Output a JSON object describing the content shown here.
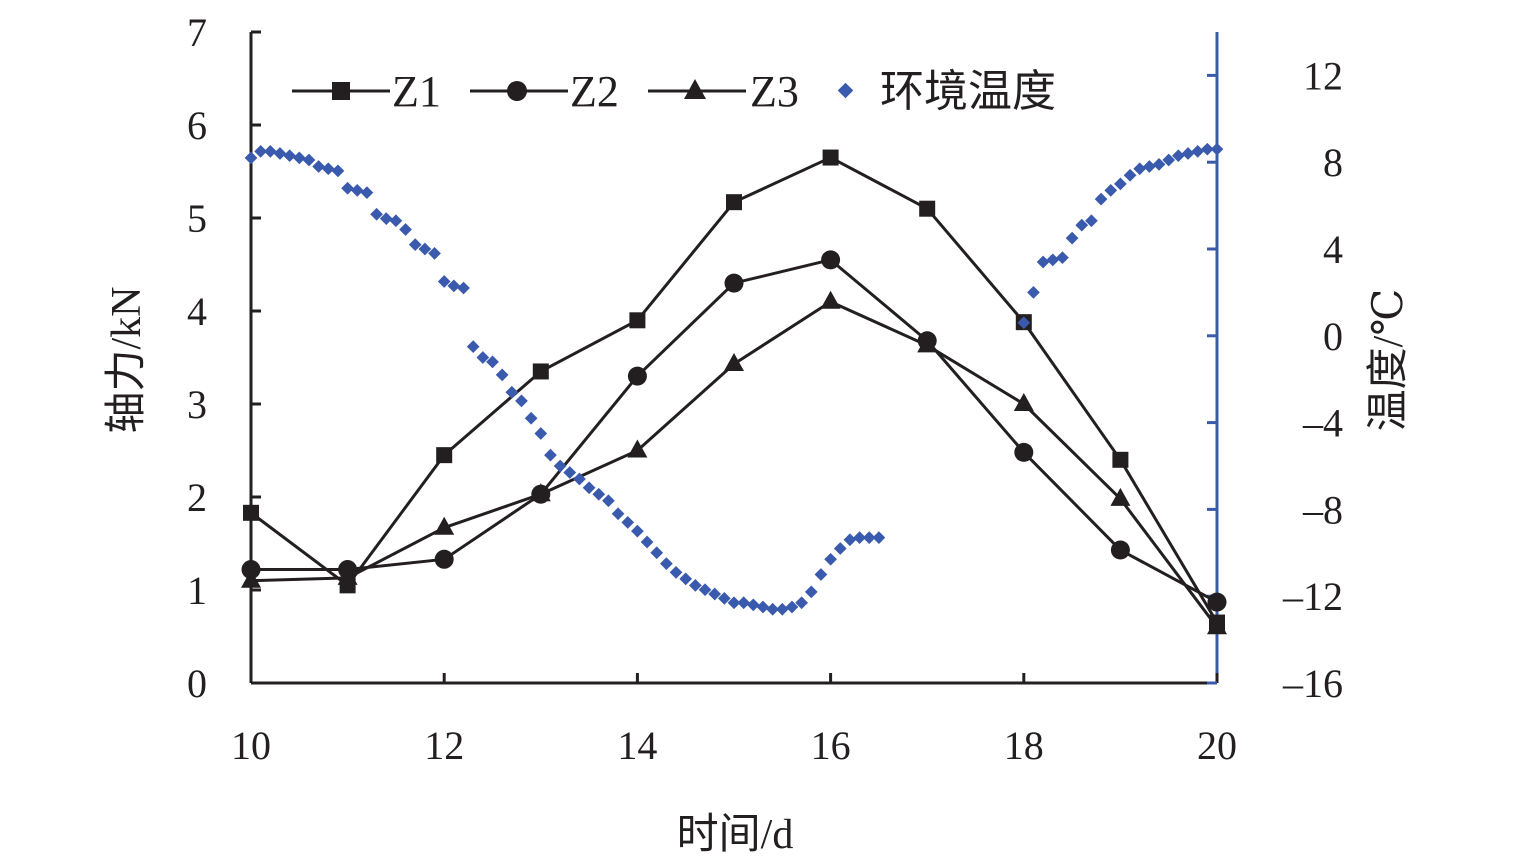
{
  "chart_data": {
    "type": "line",
    "xlabel": "时间/d",
    "ylabel": "轴力/kN",
    "y2label": "温度/℃",
    "xlim": [
      10,
      20
    ],
    "ylim": [
      0,
      7
    ],
    "y2lim": [
      -16,
      14
    ],
    "x_ticks": [
      10,
      12,
      14,
      16,
      18,
      20
    ],
    "y_ticks": [
      0,
      1,
      2,
      3,
      4,
      5,
      6,
      7
    ],
    "y2_ticks": [
      -16,
      -12,
      -8,
      -4,
      0,
      4,
      8,
      12
    ],
    "legend_position": "top",
    "series": [
      {
        "name": "Z1",
        "axis": "left",
        "marker": "square",
        "color": "#231f20",
        "x": [
          10,
          11,
          12,
          13,
          14,
          15,
          16,
          17,
          18,
          19,
          20
        ],
        "values": [
          1.83,
          1.05,
          2.45,
          3.35,
          3.9,
          5.17,
          5.65,
          5.1,
          3.88,
          2.4,
          0.65
        ]
      },
      {
        "name": "Z2",
        "axis": "left",
        "marker": "circle",
        "color": "#231f20",
        "x": [
          10,
          11,
          12,
          13,
          14,
          15,
          16,
          17,
          18,
          19,
          20
        ],
        "values": [
          1.22,
          1.22,
          1.33,
          2.03,
          3.3,
          4.3,
          4.55,
          3.68,
          2.48,
          1.43,
          0.87
        ]
      },
      {
        "name": "Z3",
        "axis": "left",
        "marker": "triangle",
        "color": "#231f20",
        "x": [
          10,
          11,
          12,
          13,
          14,
          15,
          16,
          17,
          18,
          19,
          20
        ],
        "values": [
          1.1,
          1.13,
          1.67,
          2.03,
          2.5,
          3.43,
          4.1,
          3.63,
          3.0,
          1.98,
          0.6
        ]
      },
      {
        "name": "环境温度",
        "axis": "right",
        "marker": "diamond",
        "color": "#3a5bad",
        "x": [
          10.0,
          10.1,
          10.2,
          10.3,
          10.4,
          10.5,
          10.6,
          10.7,
          10.8,
          10.9,
          11.0,
          11.1,
          11.2,
          11.3,
          11.4,
          11.5,
          11.6,
          11.7,
          11.8,
          11.9,
          12.0,
          12.1,
          12.2,
          12.3,
          12.4,
          12.5,
          12.6,
          12.7,
          12.8,
          12.9,
          13.0,
          13.1,
          13.2,
          13.3,
          13.4,
          13.5,
          13.6,
          13.7,
          13.8,
          13.9,
          14.0,
          14.1,
          14.2,
          14.3,
          14.4,
          14.5,
          14.6,
          14.7,
          14.8,
          14.9,
          15.0,
          15.1,
          15.2,
          15.3,
          15.4,
          15.5,
          15.6,
          15.7,
          15.8,
          15.9,
          16.0,
          16.1,
          16.2,
          16.3,
          16.4,
          16.5,
          18.0,
          18.1,
          18.2,
          18.3,
          18.4,
          18.5,
          18.6,
          18.7,
          18.8,
          18.9,
          19.0,
          19.1,
          19.2,
          19.3,
          19.4,
          19.5,
          19.6,
          19.7,
          19.8,
          19.9,
          20.0
        ],
        "values": [
          8.2,
          8.5,
          8.5,
          8.4,
          8.3,
          8.2,
          8.1,
          7.8,
          7.7,
          7.6,
          6.8,
          6.7,
          6.6,
          5.6,
          5.4,
          5.3,
          4.9,
          4.2,
          4.0,
          3.8,
          2.5,
          2.3,
          2.2,
          -0.5,
          -1.0,
          -1.2,
          -1.8,
          -2.6,
          -3.0,
          -3.8,
          -4.5,
          -5.5,
          -6.0,
          -6.3,
          -6.6,
          -7.0,
          -7.3,
          -7.6,
          -8.2,
          -8.6,
          -9.0,
          -9.5,
          -10.0,
          -10.5,
          -10.9,
          -11.2,
          -11.5,
          -11.7,
          -11.9,
          -12.1,
          -12.3,
          -12.3,
          -12.4,
          -12.5,
          -12.6,
          -12.6,
          -12.5,
          -12.3,
          -11.8,
          -11.0,
          -10.3,
          -9.8,
          -9.4,
          -9.3,
          -9.3,
          -9.3,
          0.6,
          2.0,
          3.4,
          3.5,
          3.6,
          4.5,
          5.1,
          5.3,
          6.3,
          6.7,
          7.0,
          7.4,
          7.7,
          7.8,
          7.9,
          8.1,
          8.3,
          8.4,
          8.5,
          8.6,
          8.6
        ]
      }
    ]
  }
}
